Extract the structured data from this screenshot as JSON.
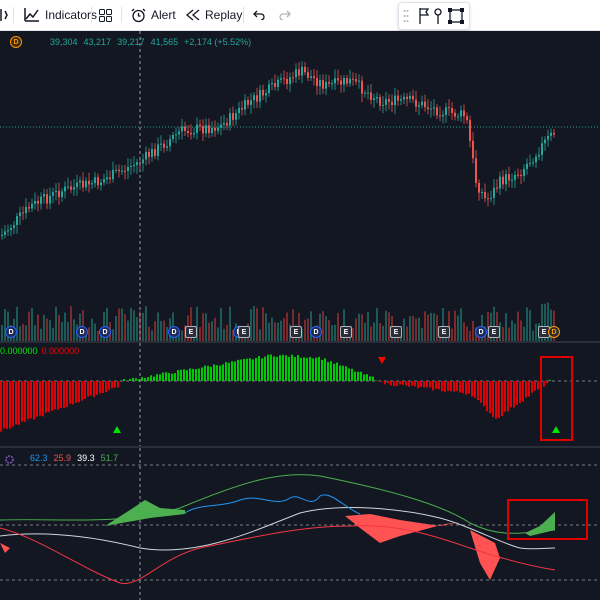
{
  "toolbar": {
    "indicators_label": "Indicators",
    "alert_label": "Alert",
    "replay_label": "Replay"
  },
  "main_legend": {
    "interval_badge": "D",
    "open": "39,304",
    "high": "43,217",
    "low": "39,217",
    "close": "41,565",
    "change": "+2,174 (+5.52%)"
  },
  "oscillator_legend": {
    "value1": "0.000000",
    "value2": "0.000000"
  },
  "dmi_legend": {
    "v1": "62.3",
    "v2": "25.9",
    "v3": "39.3",
    "v4": "51.7"
  },
  "events": {
    "dividend_label": "D",
    "earnings_label": "E"
  },
  "colors": {
    "up": "#26a69a",
    "down": "#ef5350",
    "osc_up": "#00e600",
    "osc_down": "#ff0000",
    "highlight_box": "#e00000",
    "line_blue": "#2196f3",
    "line_green": "#4caf50",
    "line_red": "#f23645",
    "line_white": "#d1d4dc"
  }
}
